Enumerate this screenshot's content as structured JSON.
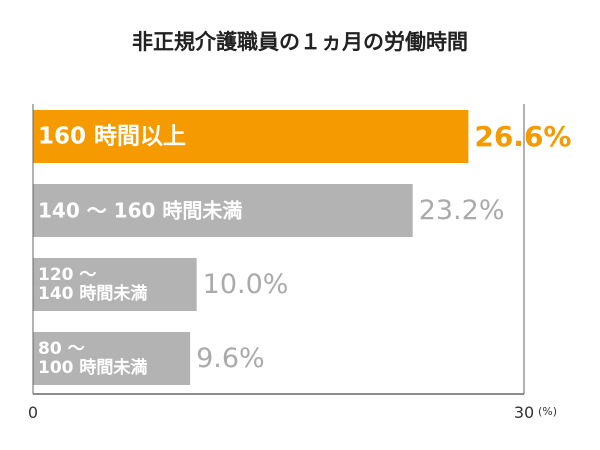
{
  "chart_data": {
    "type": "bar",
    "orientation": "horizontal",
    "title": "非正規介護職員の１ヵ月の労働時間",
    "categories": [
      "160 時間以上",
      "140 ～ 160 時間未満",
      "120 ～\n140 時間未満",
      "80 ～\n100 時間未満"
    ],
    "values": [
      26.6,
      23.2,
      10.0,
      9.6
    ],
    "value_labels": [
      "26.6%",
      "23.2%",
      "10.0%",
      "9.6%"
    ],
    "xlim": [
      0,
      30
    ],
    "x_ticks": [
      "0",
      "30"
    ],
    "unit_label": "(%)",
    "grid": false,
    "colors": {
      "highlight_bar": "#f59a00",
      "highlight_value": "#f59a00",
      "bar": "#b3b3b3",
      "value": "#aaaaaa",
      "bar_text": "#ffffff",
      "axis": "#666666"
    }
  }
}
